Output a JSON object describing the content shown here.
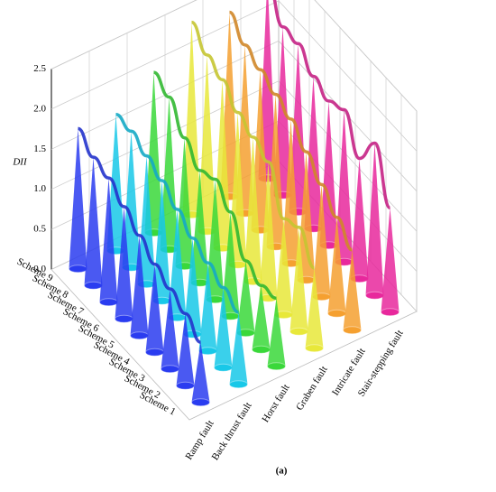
{
  "chart_data": {
    "type": "cone3d",
    "zlabel": "DII",
    "caption": "(a)",
    "categories": [
      "Scheme 1",
      "Scheme 2",
      "Scheme 3",
      "Scheme 4",
      "Scheme 5",
      "Scheme 6",
      "Scheme 7",
      "Scheme 8",
      "Scheme 9"
    ],
    "series": [
      {
        "name": "Ramp fault",
        "color": "#2a3cf0",
        "values": [
          0.75,
          0.9,
          1.0,
          1.1,
          1.25,
          1.4,
          1.55,
          1.6,
          1.75
        ]
      },
      {
        "name": "Back thrust fault",
        "color": "#18c8e8",
        "values": [
          0.9,
          1.0,
          1.1,
          1.2,
          1.35,
          1.5,
          1.6,
          1.7,
          1.7
        ]
      },
      {
        "name": "Horst fault",
        "color": "#3ad83a",
        "values": [
          0.85,
          0.8,
          0.9,
          1.3,
          1.5,
          1.4,
          1.6,
          1.9,
          2.0
        ]
      },
      {
        "name": "Graben fault",
        "color": "#e8e83a",
        "values": [
          1.0,
          1.3,
          1.2,
          1.7,
          1.8,
          1.9,
          2.1,
          2.2,
          2.4
        ]
      },
      {
        "name": "Intricate fault",
        "color": "#f5a030",
        "values": [
          1.0,
          1.2,
          1.4,
          1.6,
          1.8,
          1.9,
          2.0,
          2.1,
          2.3
        ]
      },
      {
        "name": "Stair-stepping fault",
        "color": "#e8289c",
        "values": [
          1.3,
          1.9,
          1.5,
          1.9,
          1.8,
          1.9,
          2.1,
          2.1,
          2.5
        ]
      }
    ],
    "zlim": [
      0,
      2.5
    ],
    "zticks": [
      {
        "value": 0,
        "label": "0.0"
      },
      0.5,
      {
        "value": 1,
        "label": "1.0"
      },
      1.5,
      {
        "value": 2,
        "label": "2.0"
      },
      2.5
    ],
    "grid": true
  }
}
